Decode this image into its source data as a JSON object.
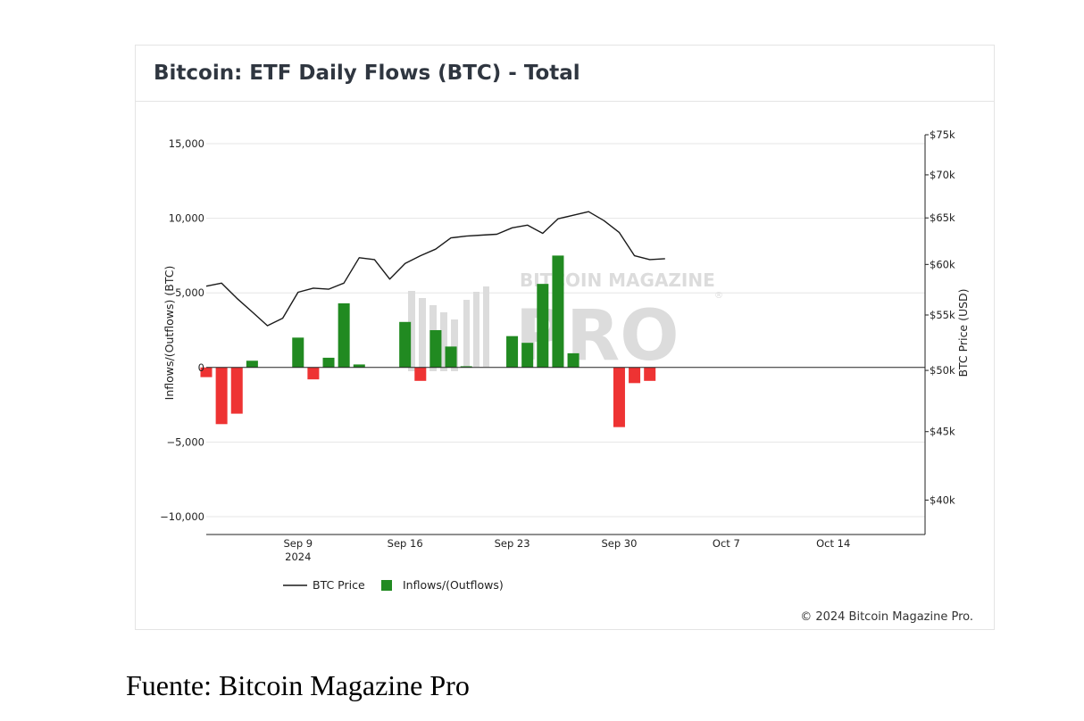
{
  "card": {
    "title": "Bitcoin: ETF Daily Flows (BTC) - Total",
    "copyright": "© 2024 Bitcoin Magazine Pro."
  },
  "caption": "Fuente: Bitcoin Magazine Pro",
  "watermark": {
    "top": "BITCOIN MAGAZINE",
    "bottom": "PRO",
    "mark": "®"
  },
  "colors": {
    "inflow": "#218a21",
    "outflow": "#ee3333",
    "price_line": "#1a1a1a",
    "grid": "#e6e6e6",
    "axis": "#222222",
    "watermark": "#dcdcdc"
  },
  "chart_data": {
    "type": "bar",
    "title": "Bitcoin: ETF Daily Flows (BTC) - Total",
    "ylabel": "Inflows/(Outflows) (BTC)",
    "y2label": "BTC Price (USD)",
    "ylim": [
      -11200,
      15600
    ],
    "yticks": [
      15000,
      10000,
      5000,
      0,
      -5000,
      -10000
    ],
    "ytick_labels": [
      "15,000",
      "10,000",
      "5,000",
      "0",
      "−5,000",
      "−10,000"
    ],
    "y2ticks": [
      75000,
      70000,
      65000,
      60000,
      55000,
      50000,
      45000,
      40000
    ],
    "y2tick_labels": [
      "$75k",
      "$70k",
      "$65k",
      "$60k",
      "$55k",
      "$50k",
      "$45k",
      "$40k"
    ],
    "y2_scale": "log",
    "y2lim": [
      37700,
      75000
    ],
    "x_range": [
      "2024-09-03",
      "2024-10-20"
    ],
    "xticks": [
      "2024-09-09",
      "2024-09-16",
      "2024-09-23",
      "2024-09-30",
      "2024-10-07",
      "2024-10-14"
    ],
    "xtick_labels": [
      "Sep 9",
      "Sep 16",
      "Sep 23",
      "Sep 30",
      "Oct 7",
      "Oct 14"
    ],
    "xtick_year": "2024",
    "grid": true,
    "legend_placement": "bottom-left",
    "series": [
      {
        "name": "BTC Price",
        "type": "line",
        "axis": "right",
        "x": [
          "2024-09-03",
          "2024-09-04",
          "2024-09-05",
          "2024-09-06",
          "2024-09-07",
          "2024-09-08",
          "2024-09-09",
          "2024-09-10",
          "2024-09-11",
          "2024-09-12",
          "2024-09-13",
          "2024-09-14",
          "2024-09-15",
          "2024-09-16",
          "2024-09-17",
          "2024-09-18",
          "2024-09-19",
          "2024-09-20",
          "2024-09-21",
          "2024-09-22",
          "2024-09-23",
          "2024-09-24",
          "2024-09-25",
          "2024-09-26",
          "2024-09-27",
          "2024-09-28",
          "2024-09-29",
          "2024-09-30",
          "2024-10-01",
          "2024-10-02",
          "2024-10-03"
        ],
        "values": [
          57800,
          58100,
          56600,
          55300,
          54000,
          54700,
          57200,
          57600,
          57500,
          58100,
          60700,
          60500,
          58500,
          60100,
          60900,
          61600,
          62800,
          63000,
          63100,
          63200,
          63900,
          64200,
          63300,
          64900,
          65300,
          65700,
          64700,
          63400,
          60900,
          60500,
          60600
        ]
      },
      {
        "name": "Inflows/(Outflows)",
        "type": "bar",
        "axis": "left",
        "x": [
          "2024-09-03",
          "2024-09-04",
          "2024-09-05",
          "2024-09-06",
          "2024-09-09",
          "2024-09-10",
          "2024-09-11",
          "2024-09-12",
          "2024-09-13",
          "2024-09-16",
          "2024-09-17",
          "2024-09-18",
          "2024-09-19",
          "2024-09-20",
          "2024-09-23",
          "2024-09-24",
          "2024-09-25",
          "2024-09-26",
          "2024-09-27",
          "2024-09-30",
          "2024-10-01",
          "2024-10-02",
          "2024-10-03"
        ],
        "values": [
          -650,
          -3800,
          -3100,
          450,
          2000,
          -800,
          650,
          4300,
          200,
          3050,
          -900,
          2500,
          1400,
          80,
          2100,
          1650,
          5600,
          7500,
          950,
          -4000,
          -1050,
          -900,
          0
        ]
      }
    ]
  }
}
